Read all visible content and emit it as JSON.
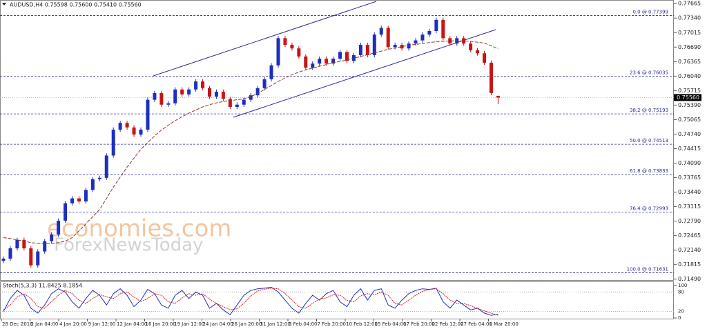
{
  "chart_data": {
    "type": "candlestick",
    "title": "AUDUSD,H4  0.75598 0.75600 0.75410 0.75560",
    "ylim": [
      0.7147,
      0.7773
    ],
    "yticks": [
      0.77665,
      {
        "value": 0.7734,
        "label": "0.77340"
      },
      0.77015,
      {
        "value": 0.7669,
        "label": "0.76690"
      },
      0.76365,
      {
        "value": 0.7604,
        "label": "0.76040"
      },
      0.75715,
      {
        "value": 0.7539,
        "label": "0.75390"
      },
      0.75065,
      {
        "value": 0.7474,
        "label": "0.74740"
      },
      0.74415,
      {
        "value": 0.7409,
        "label": "0.74090"
      },
      0.73765,
      {
        "value": 0.7344,
        "label": "0.73440"
      },
      0.73115,
      {
        "value": 0.7279,
        "label": "0.72790"
      },
      0.72465,
      {
        "value": 0.7214,
        "label": "0.72140"
      },
      0.71815,
      {
        "value": 0.7149,
        "label": "0.71490"
      }
    ],
    "xlabels": [
      "28 Dec 2016",
      "2 Jan 04:00",
      "4 Jan 20:00",
      "9 Jan 12:00",
      "12 Jan 04:00",
      "16 Jan 20:00",
      "19 Jan 12:00",
      "24 Jan 04:00",
      "26 Jan 20:00",
      "31 Jan 12:00",
      "3 Feb 04:00",
      "7 Feb 20:00",
      "10 Feb 12:00",
      "15 Feb 04:00",
      "17 Feb 20:00",
      "22 Feb 12:00",
      "27 Feb 04:00",
      "1 Mar 20:00"
    ],
    "up_color": "#1c2fbf",
    "down_color": "#c81414",
    "ohlc": [
      [
        0.719,
        0.72,
        0.7185,
        0.7195
      ],
      [
        0.7195,
        0.7223,
        0.719,
        0.7218
      ],
      [
        0.7218,
        0.7242,
        0.7213,
        0.7237
      ],
      [
        0.7237,
        0.7242,
        0.7213,
        0.7218
      ],
      [
        0.7218,
        0.7223,
        0.7175,
        0.718
      ],
      [
        0.718,
        0.7216,
        0.7175,
        0.7211
      ],
      [
        0.7211,
        0.7239,
        0.7206,
        0.7234
      ],
      [
        0.7234,
        0.7254,
        0.7229,
        0.7249
      ],
      [
        0.7249,
        0.7285,
        0.7244,
        0.728
      ],
      [
        0.728,
        0.7324,
        0.7275,
        0.7319
      ],
      [
        0.7319,
        0.7335,
        0.7314,
        0.733
      ],
      [
        0.733,
        0.7335,
        0.7318,
        0.7323
      ],
      [
        0.7323,
        0.7354,
        0.7318,
        0.7349
      ],
      [
        0.7349,
        0.7378,
        0.7344,
        0.7373
      ],
      [
        0.7373,
        0.7381,
        0.7368,
        0.7376
      ],
      [
        0.7376,
        0.7431,
        0.7371,
        0.7426
      ],
      [
        0.7426,
        0.7489,
        0.7421,
        0.7484
      ],
      [
        0.7484,
        0.7504,
        0.7479,
        0.7499
      ],
      [
        0.7499,
        0.7504,
        0.7484,
        0.7489
      ],
      [
        0.7489,
        0.7494,
        0.7468,
        0.7473
      ],
      [
        0.7473,
        0.7489,
        0.7468,
        0.7484
      ],
      [
        0.7484,
        0.7556,
        0.7479,
        0.7551
      ],
      [
        0.7551,
        0.7571,
        0.7546,
        0.7566
      ],
      [
        0.7566,
        0.7571,
        0.7535,
        0.754
      ],
      [
        0.754,
        0.7548,
        0.7535,
        0.7543
      ],
      [
        0.7543,
        0.7579,
        0.7538,
        0.7574
      ],
      [
        0.7574,
        0.7579,
        0.7558,
        0.7563
      ],
      [
        0.7563,
        0.7579,
        0.7558,
        0.7574
      ],
      [
        0.7574,
        0.7597,
        0.7569,
        0.7592
      ],
      [
        0.7592,
        0.7597,
        0.7572,
        0.7577
      ],
      [
        0.7577,
        0.7582,
        0.7553,
        0.7558
      ],
      [
        0.7558,
        0.7574,
        0.7553,
        0.7569
      ],
      [
        0.7569,
        0.7574,
        0.7548,
        0.7553
      ],
      [
        0.7553,
        0.7558,
        0.753,
        0.7535
      ],
      [
        0.7535,
        0.7545,
        0.753,
        0.754
      ],
      [
        0.754,
        0.7556,
        0.7535,
        0.7551
      ],
      [
        0.7551,
        0.7566,
        0.7546,
        0.7561
      ],
      [
        0.7561,
        0.7582,
        0.7556,
        0.7577
      ],
      [
        0.7577,
        0.7602,
        0.7572,
        0.7597
      ],
      [
        0.7597,
        0.7633,
        0.7592,
        0.7628
      ],
      [
        0.7628,
        0.7694,
        0.7623,
        0.7689
      ],
      [
        0.7689,
        0.7694,
        0.7669,
        0.7674
      ],
      [
        0.7674,
        0.7679,
        0.7661,
        0.7666
      ],
      [
        0.7666,
        0.7671,
        0.7643,
        0.7648
      ],
      [
        0.7648,
        0.7653,
        0.7618,
        0.7623
      ],
      [
        0.7623,
        0.7637,
        0.7618,
        0.7632
      ],
      [
        0.7632,
        0.7648,
        0.7627,
        0.7643
      ],
      [
        0.7643,
        0.7648,
        0.7627,
        0.7632
      ],
      [
        0.7632,
        0.7648,
        0.7627,
        0.7643
      ],
      [
        0.7643,
        0.7663,
        0.7638,
        0.7658
      ],
      [
        0.7658,
        0.7663,
        0.7633,
        0.7638
      ],
      [
        0.7638,
        0.7656,
        0.7633,
        0.7651
      ],
      [
        0.7651,
        0.7679,
        0.7646,
        0.7674
      ],
      [
        0.7674,
        0.7679,
        0.7646,
        0.7651
      ],
      [
        0.7651,
        0.7702,
        0.7646,
        0.7697
      ],
      [
        0.7697,
        0.7717,
        0.7692,
        0.7712
      ],
      [
        0.7712,
        0.7717,
        0.7664,
        0.7669
      ],
      [
        0.7669,
        0.7679,
        0.7664,
        0.7674
      ],
      [
        0.7674,
        0.7679,
        0.7661,
        0.7666
      ],
      [
        0.7666,
        0.7682,
        0.7661,
        0.7677
      ],
      [
        0.7677,
        0.7689,
        0.7672,
        0.7684
      ],
      [
        0.7684,
        0.7702,
        0.7679,
        0.7697
      ],
      [
        0.7697,
        0.771,
        0.7692,
        0.7705
      ],
      [
        0.7705,
        0.7735,
        0.77,
        0.773
      ],
      [
        0.773,
        0.7735,
        0.7684,
        0.7689
      ],
      [
        0.7689,
        0.7694,
        0.7672,
        0.7677
      ],
      [
        0.7677,
        0.7694,
        0.7672,
        0.7689
      ],
      [
        0.7689,
        0.7694,
        0.7672,
        0.7677
      ],
      [
        0.7677,
        0.7682,
        0.7657,
        0.7662
      ],
      [
        0.7662,
        0.7667,
        0.765,
        0.7655
      ],
      [
        0.7655,
        0.766,
        0.7629,
        0.7634
      ],
      [
        0.7634,
        0.7639,
        0.7561,
        0.7566
      ],
      [
        0.75598,
        0.756,
        0.7541,
        0.7556
      ]
    ],
    "moving_average": {
      "color": "#8b3a2a",
      "values": [
        0.7242,
        0.724,
        0.7237,
        0.7234,
        0.7231,
        0.7229,
        0.7228,
        0.7229,
        0.7231,
        0.7234,
        0.7242,
        0.7257,
        0.7273,
        0.7289,
        0.7305,
        0.733,
        0.7355,
        0.7378,
        0.74,
        0.742,
        0.744,
        0.7455,
        0.747,
        0.7483,
        0.7494,
        0.7504,
        0.7513,
        0.7521,
        0.7528,
        0.7535,
        0.754,
        0.7544,
        0.7547,
        0.7549,
        0.7551,
        0.7553,
        0.7558,
        0.7565,
        0.7574,
        0.7583,
        0.7592,
        0.76,
        0.7607,
        0.7613,
        0.7618,
        0.7622,
        0.7626,
        0.763,
        0.7634,
        0.7637,
        0.764,
        0.7644,
        0.7648,
        0.7652,
        0.7656,
        0.766,
        0.7664,
        0.7667,
        0.767,
        0.7673,
        0.7675,
        0.7677,
        0.7679,
        0.7681,
        0.7682,
        0.7683,
        0.7683,
        0.7683,
        0.7682,
        0.768,
        0.7678,
        0.7672,
        0.7665
      ]
    },
    "fib_levels": [
      {
        "value": 0.77399,
        "label": "0.0 @ 0.77399"
      },
      {
        "value": 0.76035,
        "label": "23.6 @ 0.76035"
      },
      {
        "value": 0.75193,
        "label": "38.2 @ 0.75193"
      },
      {
        "value": 0.74513,
        "label": "50.0 @ 0.74513"
      },
      {
        "value": 0.73833,
        "label": "61.8 @ 0.73833"
      },
      {
        "value": 0.72993,
        "label": "76.4 @ 0.72993"
      },
      {
        "value": 0.71631,
        "label": "100.0 @ 0.71631"
      }
    ],
    "current_price": {
      "value": 0.7556,
      "label": "0.75560"
    },
    "watermark": [
      "economies.com",
      "ForexNewsToday"
    ],
    "stochastic": {
      "title": "Stoch(5,3,3) 11.8425 8.1854",
      "ylim": [
        0,
        100
      ],
      "yticks": [
        100,
        80,
        20,
        0
      ],
      "series": [
        {
          "name": "main",
          "color": "#1c2fbf",
          "values": [
            20,
            60,
            85,
            70,
            30,
            15,
            40,
            75,
            90,
            80,
            50,
            30,
            60,
            85,
            70,
            40,
            75,
            90,
            70,
            35,
            55,
            88,
            75,
            40,
            30,
            70,
            85,
            60,
            80,
            70,
            30,
            45,
            25,
            10,
            40,
            70,
            85,
            90,
            92,
            95,
            80,
            55,
            30,
            15,
            45,
            70,
            55,
            75,
            85,
            50,
            35,
            70,
            90,
            55,
            85,
            90,
            40,
            30,
            55,
            75,
            85,
            90,
            88,
            92,
            50,
            30,
            55,
            40,
            25,
            30,
            15,
            8,
            11.8425
          ]
        },
        {
          "name": "signal",
          "color": "#d42020",
          "values": [
            25,
            40,
            65,
            75,
            60,
            35,
            30,
            50,
            70,
            85,
            75,
            55,
            45,
            60,
            72,
            65,
            60,
            75,
            80,
            65,
            50,
            60,
            75,
            70,
            50,
            45,
            62,
            75,
            70,
            75,
            58,
            45,
            35,
            25,
            28,
            45,
            68,
            83,
            89,
            92,
            90,
            75,
            55,
            35,
            30,
            45,
            58,
            62,
            72,
            70,
            55,
            50,
            68,
            75,
            72,
            80,
            70,
            45,
            40,
            55,
            70,
            82,
            88,
            90,
            75,
            55,
            45,
            45,
            38,
            30,
            22,
            15,
            8.1854
          ]
        }
      ]
    }
  }
}
